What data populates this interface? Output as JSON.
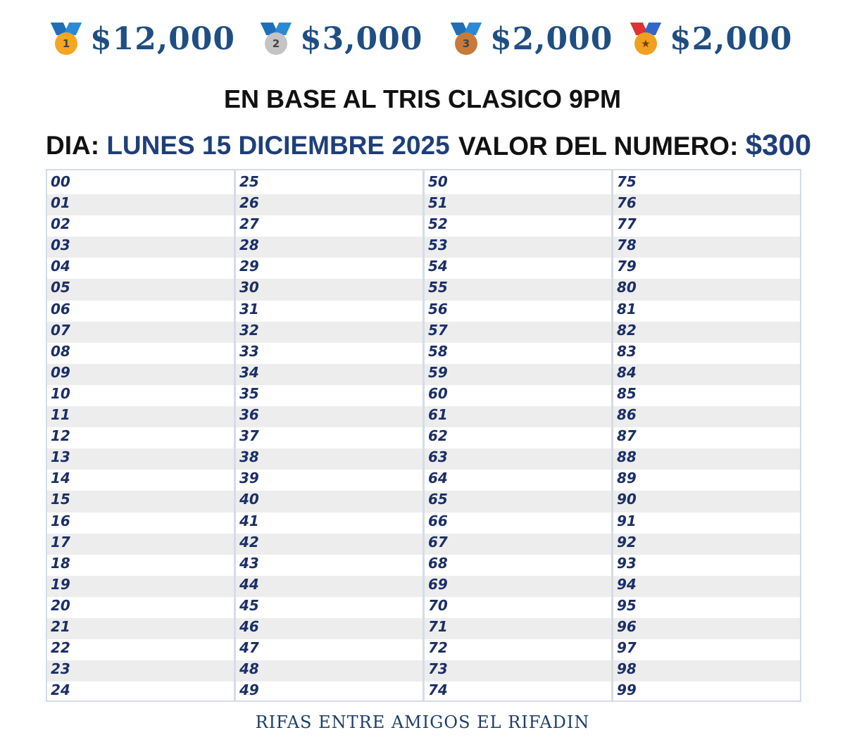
{
  "prizes": [
    {
      "place": "1",
      "amount": "$12,000",
      "icon": "gold-medal-icon",
      "color": "#f5a623"
    },
    {
      "place": "2",
      "amount": "$3,000",
      "icon": "silver-medal-icon",
      "color": "#c4c4c4"
    },
    {
      "place": "3",
      "amount": "$2,000",
      "icon": "bronze-medal-icon",
      "color": "#c87a3a"
    },
    {
      "place": "★",
      "amount": "$2,000",
      "icon": "sports-medal-icon",
      "color": "#f0a020"
    }
  ],
  "subtitle": "EN BASE AL TRIS CLASICO 9PM",
  "day": {
    "label": "DIA:",
    "value": "LUNES 15 DICIEMBRE 2025"
  },
  "price": {
    "label": "VALOR DEL NUMERO:",
    "value": "$300"
  },
  "columns": [
    [
      "00",
      "01",
      "02",
      "03",
      "04",
      "05",
      "06",
      "07",
      "08",
      "09",
      "10",
      "11",
      "12",
      "13",
      "14",
      "15",
      "16",
      "17",
      "18",
      "19",
      "20",
      "21",
      "22",
      "23",
      "24"
    ],
    [
      "25",
      "26",
      "27",
      "28",
      "29",
      "30",
      "31",
      "32",
      "33",
      "34",
      "35",
      "36",
      "37",
      "38",
      "39",
      "40",
      "41",
      "42",
      "43",
      "44",
      "45",
      "46",
      "47",
      "48",
      "49"
    ],
    [
      "50",
      "51",
      "52",
      "53",
      "54",
      "55",
      "56",
      "57",
      "58",
      "59",
      "60",
      "61",
      "62",
      "63",
      "64",
      "65",
      "66",
      "67",
      "68",
      "69",
      "70",
      "71",
      "72",
      "73",
      "74"
    ],
    [
      "75",
      "76",
      "77",
      "78",
      "79",
      "80",
      "81",
      "82",
      "83",
      "84",
      "85",
      "86",
      "87",
      "88",
      "89",
      "90",
      "91",
      "92",
      "93",
      "94",
      "95",
      "96",
      "97",
      "98",
      "99"
    ]
  ],
  "footer": "RIFAS ENTRE AMIGOS EL RIFADIN"
}
